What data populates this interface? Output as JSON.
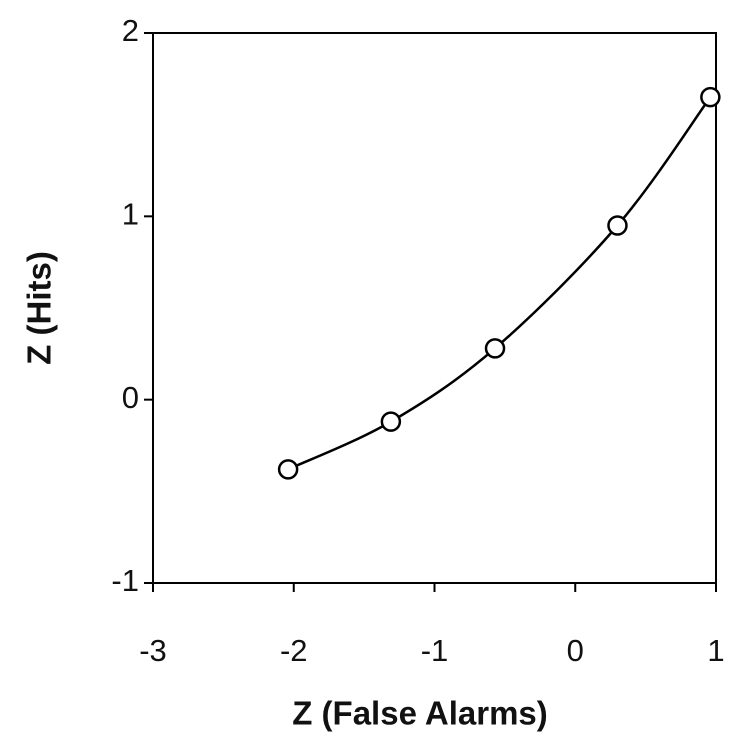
{
  "chart_data": {
    "type": "line",
    "xlabel": "Z (False Alarms)",
    "ylabel": "Z (Hits)",
    "x": [
      -2.04,
      -1.31,
      -0.57,
      0.3,
      0.96
    ],
    "series": [
      {
        "color": "#000000",
        "values": [
          -0.38,
          -0.12,
          0.28,
          0.95,
          1.65
        ]
      }
    ],
    "xlim": [
      -3,
      1
    ],
    "xticks": [
      -3,
      -2,
      -1,
      0,
      1
    ],
    "ylim": [
      -1,
      2
    ],
    "yticks": [
      -1,
      0,
      1,
      2
    ],
    "markers": true,
    "grid": false
  }
}
